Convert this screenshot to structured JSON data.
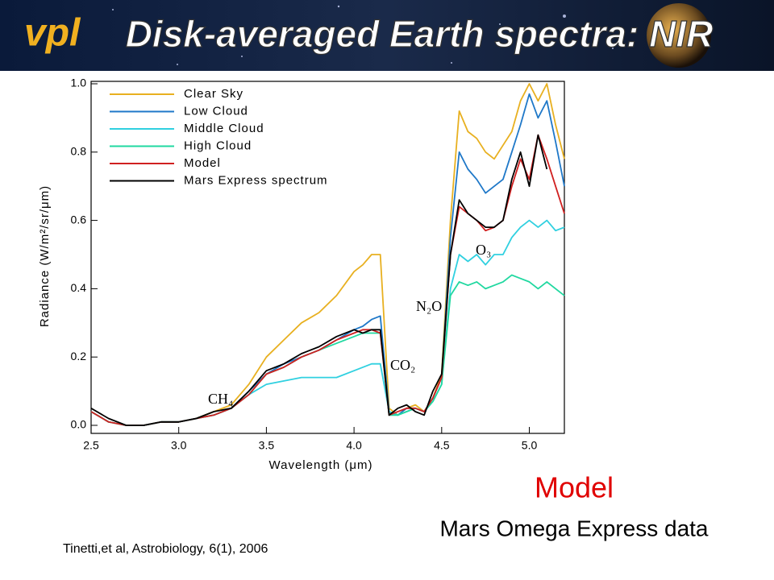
{
  "slide": {
    "logo": "vpl",
    "title": "Disk-averaged Earth spectra: NIR",
    "caption_model": "Model",
    "caption_data": "Mars Omega Express data",
    "citation": "Tinetti,et al, Astrobiology, 6(1), 2006"
  },
  "chart_data": {
    "type": "line",
    "xlabel": "Wavelength (μm)",
    "ylabel": "Radiance (W/m²/sr/μm)",
    "annotations": [
      "CH₄",
      "CO₂",
      "N₂O",
      "O₃"
    ],
    "xlim": [
      2.5,
      5.2
    ],
    "ylim": [
      0,
      1
    ],
    "xticks": [
      2.5,
      {
        "value": 3,
        "label": "3.0"
      },
      3.5,
      {
        "value": 4,
        "label": "4.0"
      },
      4.5,
      {
        "value": 5,
        "label": "5.0"
      }
    ],
    "yticks": [
      {
        "value": 0,
        "label": "0.0"
      },
      0.2,
      0.4,
      0.6,
      0.8,
      {
        "value": 1,
        "label": "1.0"
      }
    ],
    "legend": "upper left",
    "x": [
      2.5,
      2.6,
      2.7,
      2.8,
      2.9,
      3.0,
      3.1,
      3.2,
      3.3,
      3.4,
      3.5,
      3.6,
      3.7,
      3.8,
      3.9,
      4.0,
      4.05,
      4.1,
      4.15,
      4.2,
      4.25,
      4.3,
      4.35,
      4.4,
      4.45,
      4.5,
      4.55,
      4.6,
      4.65,
      4.7,
      4.75,
      4.8,
      4.85,
      4.9,
      4.95,
      5.0,
      5.05,
      5.1,
      5.15,
      5.2
    ],
    "series": [
      {
        "name": "Clear Sky",
        "color": "#e8b020",
        "values": [
          0.04,
          0.01,
          0,
          0,
          0.01,
          0.01,
          0.02,
          0.04,
          0.06,
          0.12,
          0.2,
          0.25,
          0.3,
          0.33,
          0.38,
          0.45,
          0.47,
          0.5,
          0.5,
          0.05,
          0.03,
          0.05,
          0.06,
          0.04,
          0.08,
          0.15,
          0.6,
          0.92,
          0.86,
          0.84,
          0.8,
          0.78,
          0.82,
          0.86,
          0.95,
          1.0,
          0.95,
          1.0,
          0.88,
          0.78
        ]
      },
      {
        "name": "Low Cloud",
        "color": "#1f78c8",
        "values": [
          0.04,
          0.01,
          0,
          0,
          0.01,
          0.01,
          0.02,
          0.03,
          0.05,
          0.1,
          0.15,
          0.18,
          0.2,
          0.22,
          0.25,
          0.28,
          0.29,
          0.31,
          0.32,
          0.04,
          0.03,
          0.05,
          0.05,
          0.04,
          0.08,
          0.14,
          0.55,
          0.8,
          0.75,
          0.72,
          0.68,
          0.7,
          0.72,
          0.8,
          0.88,
          0.97,
          0.9,
          0.95,
          0.83,
          0.7
        ]
      },
      {
        "name": "Middle Cloud",
        "color": "#30d0e0",
        "values": [
          0.04,
          0.01,
          0,
          0,
          0.01,
          0.01,
          0.02,
          0.03,
          0.05,
          0.09,
          0.12,
          0.13,
          0.14,
          0.14,
          0.14,
          0.16,
          0.17,
          0.18,
          0.18,
          0.04,
          0.03,
          0.04,
          0.05,
          0.04,
          0.07,
          0.12,
          0.4,
          0.5,
          0.48,
          0.5,
          0.47,
          0.5,
          0.5,
          0.55,
          0.58,
          0.6,
          0.58,
          0.6,
          0.57,
          0.58
        ]
      },
      {
        "name": "High Cloud",
        "color": "#20d8a0",
        "values": [
          0.04,
          0.01,
          0,
          0,
          0.01,
          0.01,
          0.02,
          0.03,
          0.05,
          0.09,
          0.15,
          0.17,
          0.2,
          0.22,
          0.24,
          0.26,
          0.27,
          0.27,
          0.27,
          0.03,
          0.03,
          0.04,
          0.05,
          0.04,
          0.07,
          0.12,
          0.38,
          0.42,
          0.41,
          0.42,
          0.4,
          0.41,
          0.42,
          0.44,
          0.43,
          0.42,
          0.4,
          0.42,
          0.4,
          0.38
        ]
      },
      {
        "name": "Model",
        "color": "#d02020",
        "values": [
          0.04,
          0.01,
          0,
          0,
          0.01,
          0.01,
          0.02,
          0.03,
          0.05,
          0.09,
          0.15,
          0.17,
          0.2,
          0.22,
          0.25,
          0.27,
          0.28,
          0.28,
          0.27,
          0.03,
          0.04,
          0.05,
          0.05,
          0.04,
          0.08,
          0.14,
          0.5,
          0.64,
          0.62,
          0.6,
          0.57,
          0.58,
          0.6,
          0.7,
          0.78,
          0.72,
          0.85,
          0.78,
          0.7,
          0.62
        ]
      },
      {
        "name": "Mars Express spectrum",
        "color": "#000000",
        "values": [
          0.05,
          0.02,
          0,
          0,
          0.01,
          0.01,
          0.02,
          0.04,
          0.05,
          0.1,
          0.16,
          0.18,
          0.21,
          0.23,
          0.26,
          0.28,
          0.27,
          0.28,
          0.28,
          0.03,
          0.05,
          0.06,
          0.04,
          0.03,
          0.1,
          0.15,
          0.5,
          0.66,
          0.62,
          0.6,
          0.58,
          0.58,
          0.6,
          0.72,
          0.8,
          0.7,
          0.85,
          0.75,
          null,
          null
        ]
      }
    ]
  }
}
